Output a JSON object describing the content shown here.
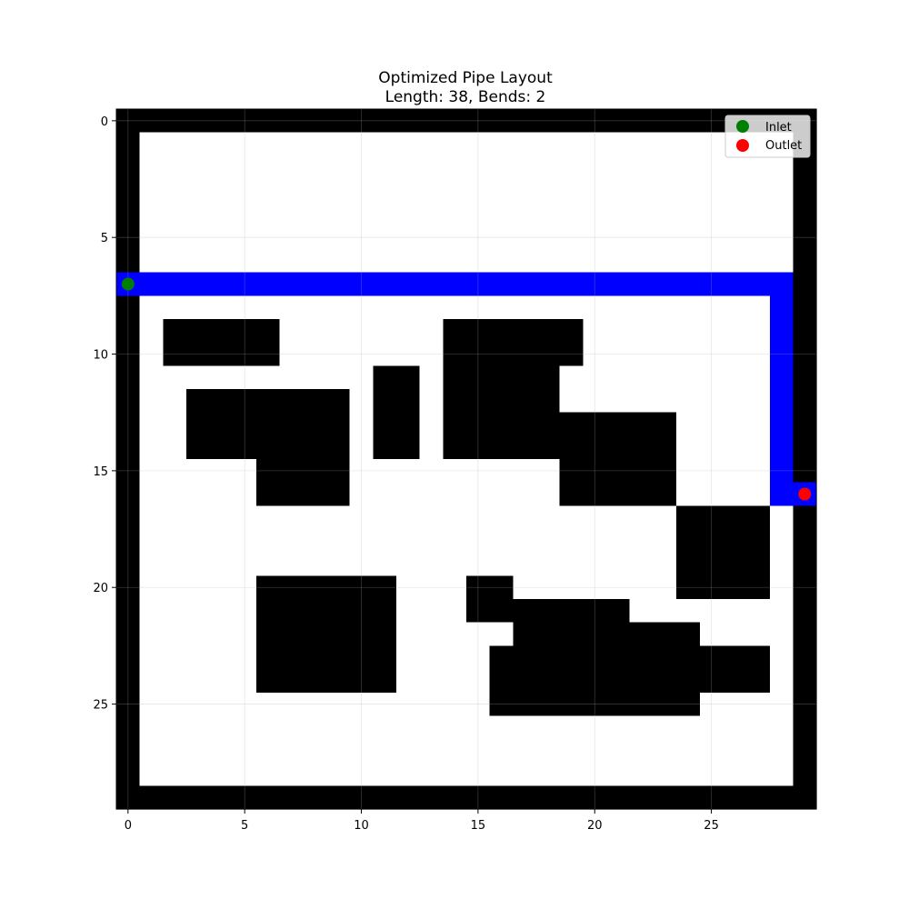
{
  "chart_data": {
    "type": "heatmap",
    "title": "Optimized Pipe Layout",
    "subtitle": "Length: 38, Bends: 2",
    "xlabel": "",
    "ylabel": "",
    "grid_size": [
      30,
      30
    ],
    "xlim": [
      -0.5,
      29.5
    ],
    "ylim": [
      29.5,
      -0.5
    ],
    "x_ticks": [
      "0",
      "5",
      "10",
      "15",
      "20",
      "25"
    ],
    "y_ticks": [
      "0",
      "5",
      "10",
      "15",
      "20",
      "25"
    ],
    "grid": true,
    "legend": {
      "placement": "top-right",
      "entries": [
        {
          "label": "Inlet",
          "color": "#008000"
        },
        {
          "label": "Outlet",
          "color": "#ff0000"
        }
      ]
    },
    "colors": {
      "obstacle": "#000000",
      "free": "#ffffff",
      "pipe": "#0000ff",
      "inlet": "#008000",
      "outlet": "#ff0000"
    },
    "obstacles": [
      {
        "x": [
          0,
          29
        ],
        "y": [
          0,
          0
        ]
      },
      {
        "x": [
          0,
          29
        ],
        "y": [
          29,
          29
        ]
      },
      {
        "x": [
          0,
          0
        ],
        "y": [
          0,
          29
        ]
      },
      {
        "x": [
          29,
          29
        ],
        "y": [
          0,
          29
        ]
      },
      {
        "x": [
          2,
          6
        ],
        "y": [
          9,
          10
        ]
      },
      {
        "x": [
          3,
          9
        ],
        "y": [
          12,
          14
        ]
      },
      {
        "x": [
          6,
          9
        ],
        "y": [
          15,
          16
        ]
      },
      {
        "x": [
          11,
          12
        ],
        "y": [
          11,
          14
        ]
      },
      {
        "x": [
          14,
          19
        ],
        "y": [
          9,
          10
        ]
      },
      {
        "x": [
          14,
          18
        ],
        "y": [
          11,
          14
        ]
      },
      {
        "x": [
          19,
          23
        ],
        "y": [
          13,
          16
        ]
      },
      {
        "x": [
          24,
          27
        ],
        "y": [
          17,
          20
        ]
      },
      {
        "x": [
          6,
          11
        ],
        "y": [
          20,
          24
        ]
      },
      {
        "x": [
          15,
          16
        ],
        "y": [
          20,
          21
        ]
      },
      {
        "x": [
          17,
          21
        ],
        "y": [
          21,
          21
        ]
      },
      {
        "x": [
          17,
          24
        ],
        "y": [
          22,
          22
        ]
      },
      {
        "x": [
          16,
          24
        ],
        "y": [
          23,
          25
        ]
      },
      {
        "x": [
          25,
          27
        ],
        "y": [
          23,
          24
        ]
      }
    ],
    "pipe_path": [
      [
        0,
        7
      ],
      [
        28,
        7
      ],
      [
        28,
        16
      ],
      [
        29,
        16
      ]
    ],
    "inlet": [
      0,
      7
    ],
    "outlet": [
      29,
      16
    ]
  }
}
